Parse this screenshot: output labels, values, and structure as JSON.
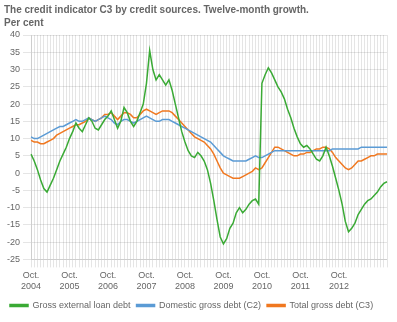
{
  "chart_data": {
    "type": "line",
    "title": "The credit indicator C3 by credit sources. Twelve-month growth.",
    "subtitle": "Per cent",
    "categories": [
      "Oct.\n2004",
      null,
      null,
      null,
      null,
      null,
      null,
      null,
      null,
      null,
      null,
      null,
      "Oct.\n2005",
      null,
      null,
      null,
      null,
      null,
      null,
      null,
      null,
      null,
      null,
      null,
      "Oct.\n2006",
      null,
      null,
      null,
      null,
      null,
      null,
      null,
      null,
      null,
      null,
      null,
      "Oct.\n2007",
      null,
      null,
      null,
      null,
      null,
      null,
      null,
      null,
      null,
      null,
      null,
      "Oct.\n2008",
      null,
      null,
      null,
      null,
      null,
      null,
      null,
      null,
      null,
      null,
      null,
      "Oct.\n2009",
      null,
      null,
      null,
      null,
      null,
      null,
      null,
      null,
      null,
      null,
      null,
      "Oct.\n2010",
      null,
      null,
      null,
      null,
      null,
      null,
      null,
      null,
      null,
      null,
      null,
      "Oct.\n2011",
      null,
      null,
      null,
      null,
      null,
      null,
      null,
      null,
      null,
      null,
      null,
      "Oct.\n2012",
      null,
      null,
      null,
      null,
      null,
      null,
      null,
      null,
      null,
      null,
      null,
      null,
      null,
      null,
      null
    ],
    "series": [
      {
        "name": "Gross external loan debt",
        "color": "#3aaa35",
        "values": [
          5.5,
          3.5,
          1.0,
          -2.0,
          -4.5,
          -5.5,
          -3.5,
          -1.5,
          1.0,
          3.5,
          5.5,
          7.5,
          10.0,
          12.0,
          14.5,
          13.0,
          12.0,
          14.0,
          16.0,
          15.0,
          13.0,
          12.5,
          14.0,
          15.5,
          16.5,
          18.0,
          15.5,
          13.0,
          15.0,
          19.0,
          17.5,
          15.0,
          13.5,
          15.0,
          17.5,
          20.0,
          26.0,
          35.5,
          30.0,
          27.0,
          28.5,
          27.0,
          25.5,
          27.0,
          24.0,
          20.0,
          16.0,
          12.0,
          9.0,
          6.5,
          5.0,
          4.5,
          6.0,
          5.0,
          3.5,
          1.0,
          -3.0,
          -8.0,
          -13.5,
          -18.5,
          -20.5,
          -19.0,
          -16.0,
          -14.5,
          -11.5,
          -10.0,
          -11.5,
          -10.5,
          -9.0,
          -8.0,
          -7.5,
          -9.0,
          26.0,
          28.5,
          30.5,
          29.0,
          27.0,
          25.0,
          23.5,
          21.5,
          18.5,
          16.0,
          13.0,
          10.5,
          8.5,
          7.5,
          8.0,
          7.0,
          5.5,
          4.0,
          3.5,
          5.0,
          7.5,
          5.0,
          2.0,
          -1.5,
          -5.0,
          -9.0,
          -14.0,
          -17.0,
          -16.0,
          -14.5,
          -12.0,
          -10.5,
          -9.0,
          -8.0,
          -7.5,
          -6.5,
          -5.5,
          -4.0,
          -3.0,
          -2.5
        ]
      },
      {
        "name": "Domestic gross debt (C2)",
        "color": "#5b9bd5",
        "values": [
          10.5,
          10.0,
          10.0,
          10.5,
          11.0,
          11.5,
          12.0,
          12.5,
          13.0,
          13.5,
          13.5,
          14.0,
          14.5,
          15.0,
          15.5,
          15.0,
          15.0,
          15.5,
          16.0,
          15.5,
          15.0,
          15.5,
          16.0,
          16.5,
          16.0,
          15.5,
          14.5,
          14.0,
          15.0,
          15.5,
          15.5,
          15.0,
          14.5,
          15.0,
          15.5,
          16.0,
          16.5,
          16.0,
          15.5,
          15.0,
          15.0,
          15.5,
          15.5,
          15.5,
          15.0,
          14.5,
          14.0,
          13.5,
          13.0,
          12.5,
          12.0,
          11.5,
          11.0,
          10.5,
          10.0,
          9.5,
          9.0,
          8.0,
          7.0,
          6.0,
          5.0,
          4.5,
          4.0,
          3.5,
          3.5,
          3.5,
          3.5,
          3.5,
          4.0,
          4.5,
          5.0,
          4.5,
          4.5,
          5.0,
          5.5,
          6.0,
          6.5,
          6.5,
          6.5,
          6.5,
          6.5,
          6.5,
          6.5,
          6.5,
          6.5,
          6.5,
          6.5,
          6.5,
          6.5,
          6.5,
          6.5,
          6.5,
          6.5,
          6.5,
          7.0,
          7.0,
          7.0,
          7.0,
          7.0,
          7.0,
          7.0,
          7.0,
          7.0,
          7.5,
          7.5,
          7.5,
          7.5,
          7.5,
          7.5,
          7.5,
          7.5,
          7.5
        ]
      },
      {
        "name": "Total gross debt (C3)",
        "color": "#f07820",
        "values": [
          9.5,
          9.0,
          9.0,
          8.5,
          8.5,
          9.0,
          9.5,
          10.0,
          11.0,
          11.5,
          12.0,
          12.5,
          13.0,
          13.5,
          14.0,
          14.0,
          14.5,
          15.0,
          16.0,
          15.5,
          15.0,
          15.5,
          16.0,
          17.0,
          17.0,
          17.5,
          16.5,
          15.5,
          16.5,
          17.5,
          17.5,
          17.0,
          16.0,
          16.0,
          17.0,
          18.0,
          18.5,
          18.0,
          17.5,
          17.0,
          17.5,
          18.0,
          18.0,
          18.0,
          17.5,
          16.5,
          15.5,
          14.5,
          13.5,
          12.5,
          11.5,
          10.5,
          10.0,
          9.5,
          9.0,
          8.0,
          7.0,
          5.5,
          3.5,
          1.5,
          0.0,
          -0.5,
          -1.0,
          -1.5,
          -1.5,
          -1.5,
          -1.0,
          -0.5,
          0.0,
          0.5,
          1.5,
          1.0,
          1.5,
          3.0,
          4.5,
          6.0,
          7.5,
          7.5,
          7.0,
          6.5,
          6.0,
          5.5,
          5.0,
          5.0,
          5.5,
          5.5,
          6.0,
          6.0,
          6.5,
          7.0,
          7.0,
          7.5,
          7.5,
          7.0,
          6.0,
          4.5,
          3.5,
          2.5,
          1.5,
          1.0,
          1.5,
          2.5,
          3.5,
          3.5,
          4.0,
          4.5,
          5.0,
          5.0,
          5.5,
          5.5,
          5.5,
          5.5
        ]
      }
    ],
    "ylim": [
      -25,
      40
    ],
    "yticks": [
      -25,
      -20,
      -15,
      -10,
      -5,
      0,
      5,
      10,
      15,
      20,
      25,
      30,
      35,
      40
    ],
    "grid": true,
    "legend": "lower left"
  }
}
